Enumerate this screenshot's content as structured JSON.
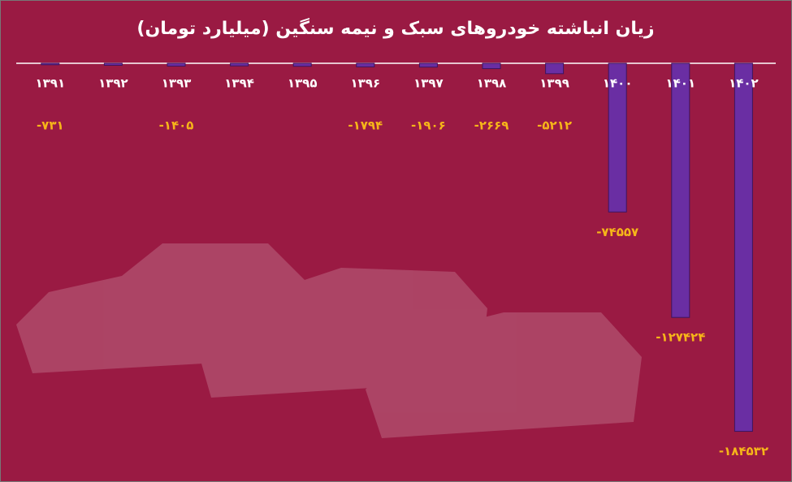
{
  "chart_data": {
    "type": "bar",
    "title": "زیان انباشته خودروهای سبک و نیمه سنگین (میلیارد تومان)",
    "categories": [
      "۱۳۹۱",
      "۱۳۹۲",
      "۱۳۹۳",
      "۱۳۹۴",
      "۱۳۹۵",
      "۱۳۹۶",
      "۱۳۹۷",
      "۱۳۹۸",
      "۱۳۹۹",
      "۱۴۰۰",
      "۱۴۰۱",
      "۱۴۰۲"
    ],
    "values": [
      -731,
      -1000,
      -1405,
      -1300,
      -1500,
      -1794,
      -1906,
      -2669,
      -5212,
      -74557,
      -127424,
      -184532
    ],
    "value_labels": [
      "-۷۳۱",
      null,
      "-۱۴۰۵",
      null,
      null,
      "-۱۷۹۴",
      "-۱۹۰۶",
      "-۲۶۶۹",
      "-۵۲۱۲",
      "-۷۴۵۵۷",
      "-۱۲۷۴۲۴",
      "-۱۸۴۵۳۲"
    ],
    "color": "#6a2ea3",
    "ylim": [
      -190000,
      0
    ]
  }
}
